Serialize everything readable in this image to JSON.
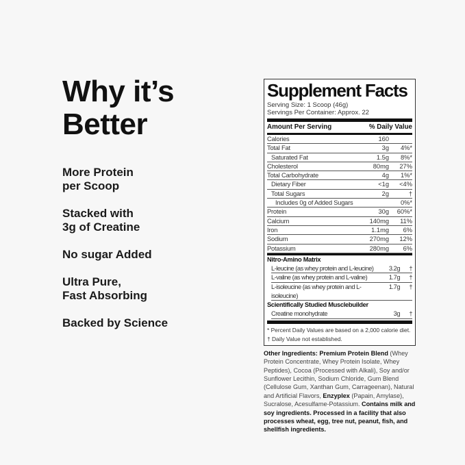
{
  "left": {
    "title_line1": "Why it’s",
    "title_line2": "Better",
    "items": [
      "More Protein\nper Scoop",
      "Stacked with\n3g of Creatine",
      "No sugar Added",
      "Ultra Pure,\nFast Absorbing",
      "Backed by Science"
    ]
  },
  "panel": {
    "title": "Supplement Facts",
    "serving_size": "Serving Size: 1 Scoop (46g)",
    "servings": "Servings Per Container: Approx. 22",
    "amount_header": "Amount Per Serving",
    "dv_header": "% Daily Value",
    "rows": [
      {
        "n": "Calories",
        "a": "160",
        "d": "",
        "l": 0
      },
      {
        "n": "Total Fat",
        "a": "3g",
        "d": "4%*",
        "l": 0
      },
      {
        "n": "Saturated Fat",
        "a": "1.5g",
        "d": "8%*",
        "l": 1
      },
      {
        "n": "Cholesterol",
        "a": "80mg",
        "d": "27%",
        "l": 0
      },
      {
        "n": "Total Carbohydrate",
        "a": "4g",
        "d": "1%*",
        "l": 0
      },
      {
        "n": "Dietary Fiber",
        "a": "<1g",
        "d": "<4%",
        "l": 1
      },
      {
        "n": "Total Sugars",
        "a": "2g",
        "d": "†",
        "l": 1
      },
      {
        "n": "Includes 0g of Added Sugars",
        "a": "",
        "d": "0%*",
        "l": 2
      },
      {
        "n": "Protein",
        "a": "30g",
        "d": "60%*",
        "l": 0
      },
      {
        "n": "Calcium",
        "a": "140mg",
        "d": "11%",
        "l": 0
      },
      {
        "n": "Iron",
        "a": "1.1mg",
        "d": "6%",
        "l": 0
      },
      {
        "n": "Sodium",
        "a": "270mg",
        "d": "12%",
        "l": 0
      },
      {
        "n": "Potassium",
        "a": "280mg",
        "d": "6%",
        "l": 0
      }
    ],
    "section1": "Nitro-Amino Matrix",
    "section1_rows": [
      {
        "n": "L-leucine (as whey protein and L-leucine)",
        "a": "3.2g",
        "d": "†"
      },
      {
        "n": "L-valine (as whey protein and L-valine)",
        "a": "1.7g",
        "d": "†"
      },
      {
        "n": "L-isoleucine (as whey protein and L-isoleucine)",
        "a": "1.7g",
        "d": "†"
      }
    ],
    "section2": "Scientifically Studied Musclebuilder",
    "section2_rows": [
      {
        "n": "Creatine monohydrate",
        "a": "3g",
        "d": "†"
      }
    ],
    "footnote1": "* Percent Daily Values are based on a 2,000 calorie diet.",
    "footnote2": "† Daily Value not established."
  },
  "ingredients": [
    {
      "b": true,
      "t": "Other Ingredients: Premium Protein Blend"
    },
    {
      "b": false,
      "t": " (Whey Protein Concentrate, Whey Protein Isolate, Whey Peptides), Cocoa (Processed with Alkali), Soy and/or Sunflower Lecithin, Sodium Chloride, Gum Blend (Cellulose Gum, Xanthan Gum, Carrageenan), Natural and Artificial Flavors, "
    },
    {
      "b": true,
      "t": "Enzyplex"
    },
    {
      "b": false,
      "t": " (Papain, Amylase), Sucralose, Acesulfame-Potassium. "
    },
    {
      "b": true,
      "t": "Contains milk and soy ingredients. Processed in a facility that also processes wheat, egg, tree nut, peanut, fish, and shellfish ingredients."
    }
  ]
}
